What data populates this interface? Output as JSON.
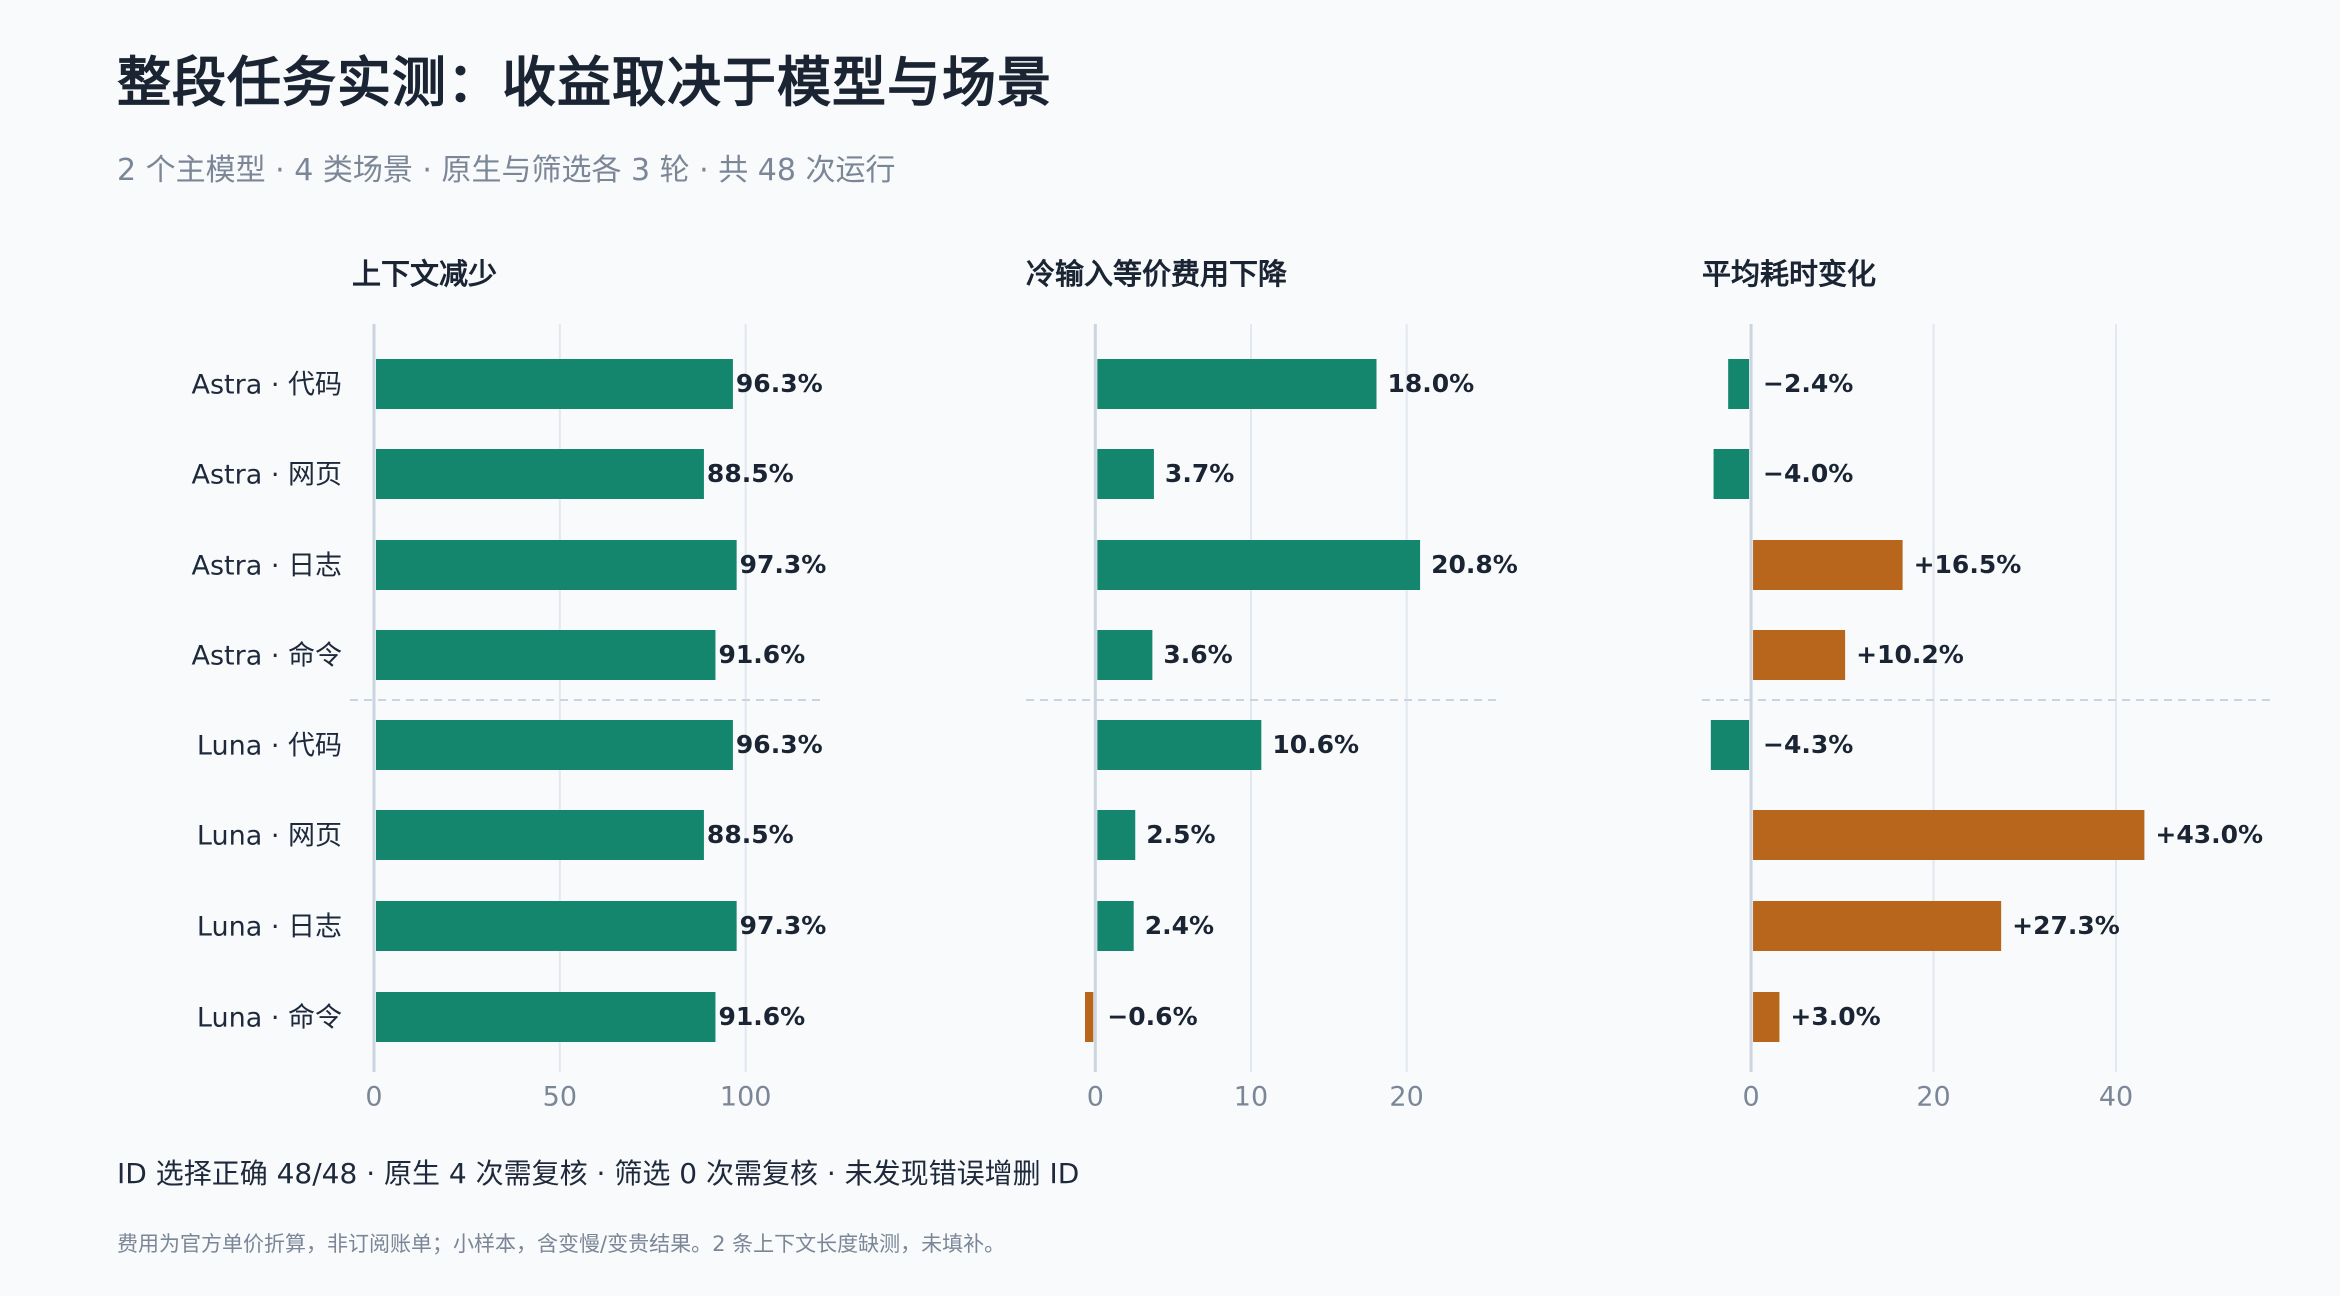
{
  "header": {
    "title": "整段任务实测：收益取决于模型与场景",
    "subtitle": "2 个主模型 · 4 类场景 · 原生与筛选各 3 轮 · 共 48 次运行"
  },
  "footer": {
    "summary": "ID 选择正确 48/48 · 原生 4 次需复核 · 筛选 0 次需复核 · 未发现错误增删 ID",
    "note": "费用为官方单价折算，非订阅账单；小样本，含变慢/变贵结果。2 条上下文长度缺测，未填补。"
  },
  "colors": {
    "positive": "#13866d",
    "negative": "#b8661b",
    "grid": "#e2e8f0",
    "axis": "#cbd5e1",
    "tick_text": "#7b8696",
    "label_text": "#1e293b"
  },
  "chart_data": {
    "type": "bar",
    "orientation": "horizontal",
    "categories": [
      "Astra · 代码",
      "Astra · 网页",
      "Astra · 日志",
      "Astra · 命令",
      "Luna · 代码",
      "Luna · 网页",
      "Luna · 日志",
      "Luna · 命令"
    ],
    "group_separator_after": 3,
    "panels": [
      {
        "title": "上下文减少",
        "values": [
          96.3,
          88.5,
          97.3,
          91.6,
          96.3,
          88.5,
          97.3,
          91.6
        ],
        "labels": [
          "96.3%",
          "88.5%",
          "97.3%",
          "91.6%",
          "96.3%",
          "88.5%",
          "97.3%",
          "91.6%"
        ],
        "xlim": [
          0,
          120
        ],
        "ticks": [
          0,
          50,
          100
        ],
        "color_rule": "all-positive"
      },
      {
        "title": "冷输入等价费用下降",
        "values": [
          18.0,
          3.7,
          20.8,
          3.6,
          10.6,
          2.5,
          2.4,
          -0.6
        ],
        "labels": [
          "18.0%",
          "3.7%",
          "20.8%",
          "3.6%",
          "10.6%",
          "2.5%",
          "2.4%",
          "−0.6%"
        ],
        "xlim": [
          -0.6,
          26
        ],
        "ticks": [
          0,
          10,
          20
        ],
        "color_rule": "negative-is-bad"
      },
      {
        "title": "平均耗时变化",
        "values": [
          -2.4,
          -4.0,
          16.5,
          10.2,
          -4.3,
          43.0,
          27.3,
          3.0
        ],
        "labels": [
          "−2.4%",
          "−4.0%",
          "+16.5%",
          "+10.2%",
          "−4.3%",
          "+43.0%",
          "+27.3%",
          "+3.0%"
        ],
        "xlim": [
          -4.5,
          56
        ],
        "ticks": [
          0,
          20,
          40
        ],
        "color_rule": "positive-is-bad"
      }
    ]
  }
}
